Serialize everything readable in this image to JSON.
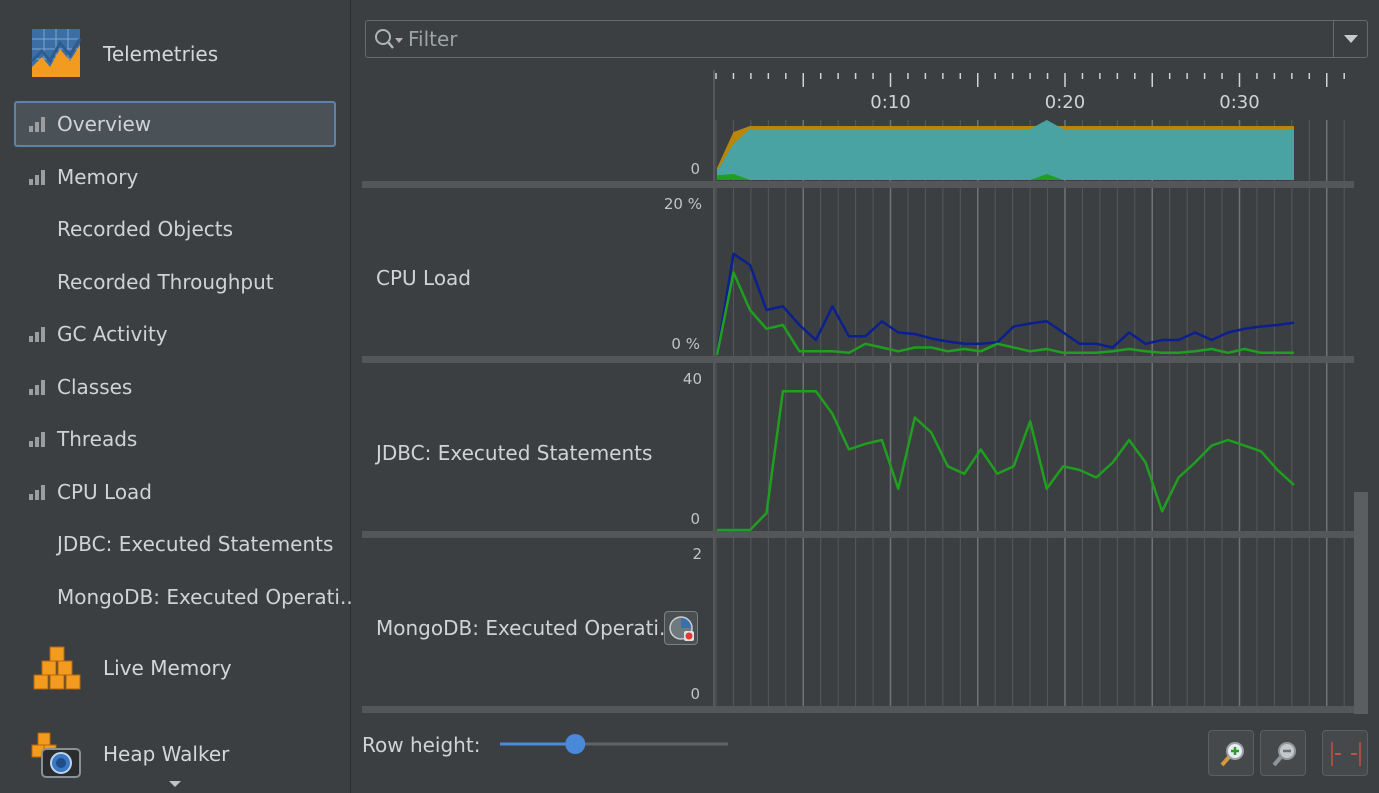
{
  "sidebar": {
    "telemetries": {
      "label": "Telemetries",
      "icon": "telemetries-icon"
    },
    "items": [
      {
        "label": "Overview",
        "icon": "bar-chart-icon",
        "selected": true
      },
      {
        "label": "Memory",
        "icon": "bar-chart-icon"
      },
      {
        "label": "Recorded Objects",
        "icon": ""
      },
      {
        "label": "Recorded Throughput",
        "icon": ""
      },
      {
        "label": "GC Activity",
        "icon": "bar-chart-icon"
      },
      {
        "label": "Classes",
        "icon": "bar-chart-icon"
      },
      {
        "label": "Threads",
        "icon": "bar-chart-icon"
      },
      {
        "label": "CPU Load",
        "icon": "bar-chart-icon"
      },
      {
        "label": "JDBC: Executed Statements",
        "icon": ""
      },
      {
        "label": "MongoDB: Executed Operati...",
        "icon": ""
      }
    ],
    "live_memory": {
      "label": "Live Memory",
      "icon": "live-memory-icon"
    },
    "heap_walker": {
      "label": "Heap Walker",
      "icon": "heap-walker-icon"
    }
  },
  "filter": {
    "placeholder": "Filter",
    "value": ""
  },
  "timeline": {
    "ticks": [
      "0:10",
      "0:20",
      "0:30"
    ],
    "rows": [
      {
        "label": "",
        "axis_max": "",
        "axis_min": "0"
      },
      {
        "label": "CPU Load",
        "axis_max": "20 %",
        "axis_min": "0 %"
      },
      {
        "label": "JDBC: Executed Statements",
        "axis_max": "40",
        "axis_min": "0"
      },
      {
        "label": "MongoDB: Executed Operati...",
        "axis_max": "2",
        "axis_min": "0"
      }
    ]
  },
  "footer": {
    "row_height_label": "Row height:",
    "slider_value": 0.33
  },
  "chart_data": [
    {
      "type": "area",
      "x": [
        0,
        1,
        2,
        3,
        4,
        5,
        6,
        7,
        8,
        9,
        10,
        11,
        12,
        13,
        14,
        15,
        16,
        17,
        18,
        19,
        20,
        21,
        22,
        23,
        24,
        25,
        26,
        27,
        28,
        29,
        30,
        31,
        32,
        33,
        34,
        35
      ],
      "series": [
        {
          "color": "#b8860b",
          "values": [
            0.2,
            0.8,
            0.9,
            0.9,
            0.9,
            0.9,
            0.9,
            0.9,
            0.9,
            0.9,
            0.9,
            0.9,
            0.9,
            0.9,
            0.9,
            0.9,
            0.9,
            0.9,
            0.9,
            0.9,
            0.9,
            0.9,
            0.9,
            0.9,
            0.9,
            0.9,
            0.9,
            0.9,
            0.9,
            0.9,
            0.9,
            0.9,
            0.9,
            0.9,
            0.9,
            0.9
          ]
        },
        {
          "color": "#4aa3a3",
          "values": [
            0.15,
            0.6,
            0.85,
            0.85,
            0.85,
            0.85,
            0.85,
            0.85,
            0.85,
            0.85,
            0.85,
            0.85,
            0.85,
            0.85,
            0.85,
            0.85,
            0.85,
            0.85,
            0.85,
            0.85,
            1.0,
            0.85,
            0.85,
            0.85,
            0.85,
            0.85,
            0.85,
            0.85,
            0.85,
            0.85,
            0.85,
            0.85,
            0.85,
            0.85,
            0.85,
            0.85
          ]
        },
        {
          "color": "#1f9e1f",
          "values": [
            0.08,
            0.1,
            0.0,
            0.0,
            0.0,
            0.0,
            0.0,
            0.0,
            0.0,
            0.0,
            0.0,
            0.0,
            0.0,
            0.0,
            0.0,
            0.0,
            0.0,
            0.0,
            0.0,
            0.0,
            0.1,
            0.0,
            0.0,
            0.0,
            0.0,
            0.0,
            0.0,
            0.0,
            0.0,
            0.0,
            0.0,
            0.0,
            0.0,
            0.0,
            0.0,
            0.0
          ]
        }
      ],
      "ylim": [
        0,
        1
      ]
    },
    {
      "type": "line",
      "x": [
        0,
        1,
        2,
        3,
        4,
        5,
        6,
        7,
        8,
        9,
        10,
        11,
        12,
        13,
        14,
        15,
        16,
        17,
        18,
        19,
        20,
        21,
        22,
        23,
        24,
        25,
        26,
        27,
        28,
        29,
        30,
        31,
        32,
        33,
        34,
        35
      ],
      "series": [
        {
          "color": "#0b1f8f",
          "values": [
            0,
            13.5,
            12,
            6,
            6.5,
            4,
            2,
            6.5,
            2.5,
            2.5,
            4.5,
            3,
            2.8,
            2.2,
            1.8,
            1.5,
            1.5,
            1.7,
            3.8,
            4.2,
            4.5,
            3,
            1.5,
            1.5,
            1,
            3,
            1.5,
            2,
            2,
            3,
            2,
            3,
            3.5,
            3.8,
            4,
            4.3
          ]
        },
        {
          "color": "#1f9e1f",
          "values": [
            0,
            11,
            6,
            3.5,
            4,
            0.5,
            0.5,
            0.5,
            0.3,
            1.5,
            1,
            0.5,
            1,
            1,
            0.5,
            0.8,
            0.5,
            1.5,
            1,
            0.5,
            0.8,
            0.3,
            0.3,
            0.3,
            0.5,
            0.8,
            0.5,
            0.3,
            0.3,
            0.5,
            0.8,
            0.3,
            0.8,
            0.3,
            0.3,
            0.3
          ]
        }
      ],
      "ylim": [
        0,
        20
      ]
    },
    {
      "type": "line",
      "x": [
        0,
        1,
        2,
        3,
        4,
        5,
        6,
        7,
        8,
        9,
        10,
        11,
        12,
        13,
        14,
        15,
        16,
        17,
        18,
        19,
        20,
        21,
        22,
        23,
        24,
        25,
        26,
        27,
        28,
        29,
        30,
        31,
        32,
        33,
        34,
        35
      ],
      "series": [
        {
          "color": "#1f9e1f",
          "values": [
            0,
            0,
            0,
            4.5,
            37,
            37,
            37,
            31,
            21.5,
            23,
            24,
            11,
            30,
            26,
            17,
            15,
            21.5,
            15,
            17,
            29,
            11,
            17,
            16,
            14,
            18,
            24,
            18,
            5,
            14,
            18,
            22.5,
            24,
            22.5,
            21,
            16,
            12
          ]
        }
      ],
      "ylim": [
        0,
        40
      ]
    },
    {
      "type": "line",
      "x": [
        0,
        1,
        2,
        3,
        4,
        5,
        6,
        7,
        8,
        9,
        10,
        11,
        12,
        13,
        14,
        15,
        16,
        17,
        18,
        19,
        20,
        21,
        22,
        23,
        24,
        25,
        26,
        27,
        28,
        29,
        30,
        31,
        32,
        33,
        34,
        35
      ],
      "series": [],
      "ylim": [
        0,
        2
      ]
    }
  ],
  "colors": {
    "selection_border": "#5e83a8",
    "accent": "#4a88d8"
  }
}
